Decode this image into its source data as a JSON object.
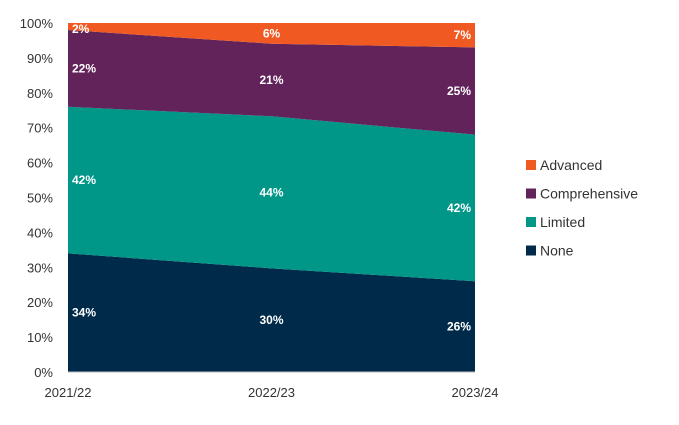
{
  "chart_data": {
    "type": "area",
    "stacked": true,
    "normalized": true,
    "categories": [
      "2021/22",
      "2022/23",
      "2023/24"
    ],
    "series": [
      {
        "name": "None",
        "values": [
          34,
          30,
          26
        ],
        "labels": [
          "34%",
          "30%",
          "26%"
        ],
        "color": "#002a4a"
      },
      {
        "name": "Limited",
        "values": [
          42,
          44,
          42
        ],
        "labels": [
          "42%",
          "44%",
          "42%"
        ],
        "color": "#009688"
      },
      {
        "name": "Comprehensive",
        "values": [
          22,
          21,
          25
        ],
        "labels": [
          "22%",
          "21%",
          "25%"
        ],
        "color": "#62225a"
      },
      {
        "name": "Advanced",
        "values": [
          2,
          6,
          7
        ],
        "labels": [
          "2%",
          "6%",
          "7%"
        ],
        "color": "#f05a22"
      }
    ],
    "ylim": [
      0,
      100
    ],
    "yticks": [
      "0%",
      "10%",
      "20%",
      "30%",
      "40%",
      "50%",
      "60%",
      "70%",
      "80%",
      "90%",
      "100%"
    ],
    "grid": false,
    "legend_placement": "right",
    "legend_order": [
      "Advanced",
      "Comprehensive",
      "Limited",
      "None"
    ]
  }
}
